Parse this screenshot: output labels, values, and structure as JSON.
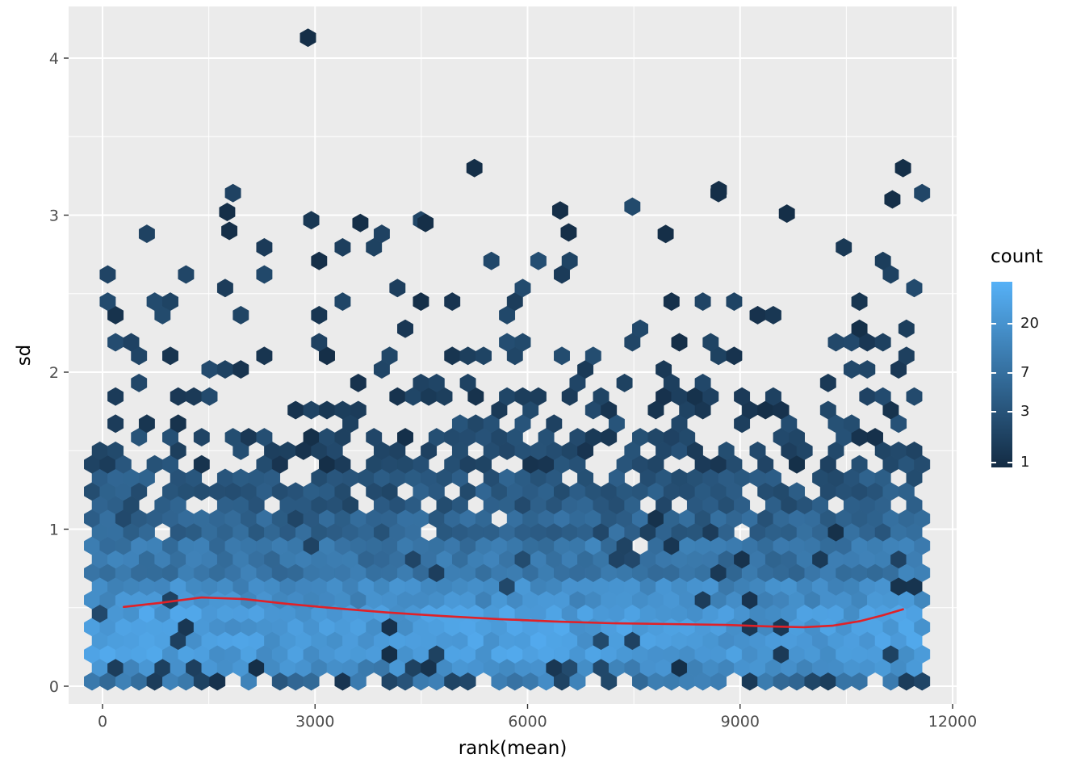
{
  "figure": {
    "background": "#FFFFFF",
    "panel_bg": "#EBEBEB",
    "grid_color": "#FFFFFF",
    "axis_text_color": "#4D4D4D",
    "axis_title_color": "#000000",
    "tick_mark_color": "#333333",
    "legend_text_color": "#1A1A1A"
  },
  "chart_data": {
    "type": "hexbin",
    "title": "",
    "xlabel": "rank(mean)",
    "ylabel": "sd",
    "x_ticks": [
      0,
      3000,
      6000,
      9000,
      12000
    ],
    "x_minor_ticks": [
      1500,
      4500,
      7500,
      10500
    ],
    "y_ticks": [
      0,
      1,
      2,
      3,
      4
    ],
    "y_minor_ticks": [
      0.5,
      1.5,
      2.5,
      3.5
    ],
    "xlim": [
      -480,
      12070
    ],
    "ylim": [
      -0.11,
      4.33
    ],
    "x_data_range": [
      -160,
      11620
    ],
    "grid": true,
    "legend_position": "right",
    "color_low": "#132B43",
    "color_high": "#56B1F7",
    "legend": {
      "title": "count",
      "tick_labels": [
        20,
        7,
        3,
        1
      ],
      "count_domain": [
        0.9,
        50
      ]
    },
    "hexbin": {
      "radius_px": 11.2,
      "seed": 42,
      "presence_bands": [
        [
          -0.03,
          0.07,
          0.78
        ],
        [
          0.07,
          0.85,
          1.0
        ],
        [
          0.85,
          1.1,
          0.96
        ],
        [
          1.1,
          1.35,
          0.82
        ],
        [
          1.35,
          1.6,
          0.55
        ],
        [
          1.6,
          1.9,
          0.38
        ],
        [
          1.9,
          2.2,
          0.22
        ],
        [
          2.2,
          2.6,
          0.12
        ],
        [
          2.6,
          3.0,
          0.055
        ],
        [
          3.0,
          3.35,
          0.02
        ]
      ],
      "count_bands": [
        [
          -0.03,
          0.08,
          3,
          12,
          0.3
        ],
        [
          0.08,
          0.18,
          8,
          18,
          0.18
        ],
        [
          0.18,
          0.5,
          16,
          20,
          0.04
        ],
        [
          0.5,
          0.7,
          10,
          14,
          0.05
        ],
        [
          0.7,
          0.9,
          5,
          8,
          0.06
        ],
        [
          0.9,
          1.1,
          3,
          5,
          0.05
        ],
        [
          1.1,
          1.35,
          2,
          3,
          0.0
        ],
        [
          1.35,
          1.7,
          1,
          2,
          0.0
        ],
        [
          1.7,
          5,
          1,
          1.3,
          0.0
        ]
      ],
      "outlier_cells": [
        [
          2900,
          4.13
        ],
        [
          5250,
          3.3
        ],
        [
          11300,
          3.3
        ],
        [
          8700,
          3.16
        ],
        [
          11150,
          3.1
        ],
        [
          1760,
          3.02
        ],
        [
          6460,
          3.03
        ],
        [
          9660,
          3.01
        ],
        [
          1790,
          2.9
        ],
        [
          3640,
          2.95
        ],
        [
          4560,
          2.95
        ],
        [
          7950,
          2.88
        ],
        [
          6580,
          2.89
        ]
      ]
    },
    "smooth_line": {
      "color": "#E02128",
      "width": 2.6,
      "points": [
        [
          300,
          0.505
        ],
        [
          800,
          0.53
        ],
        [
          1400,
          0.565
        ],
        [
          2000,
          0.555
        ],
        [
          2600,
          0.525
        ],
        [
          3200,
          0.5
        ],
        [
          4000,
          0.47
        ],
        [
          4800,
          0.447
        ],
        [
          5600,
          0.427
        ],
        [
          6400,
          0.412
        ],
        [
          7200,
          0.401
        ],
        [
          8000,
          0.396
        ],
        [
          8800,
          0.39
        ],
        [
          9400,
          0.381
        ],
        [
          9900,
          0.376
        ],
        [
          10300,
          0.385
        ],
        [
          10700,
          0.415
        ],
        [
          11000,
          0.45
        ],
        [
          11300,
          0.49
        ]
      ]
    }
  }
}
